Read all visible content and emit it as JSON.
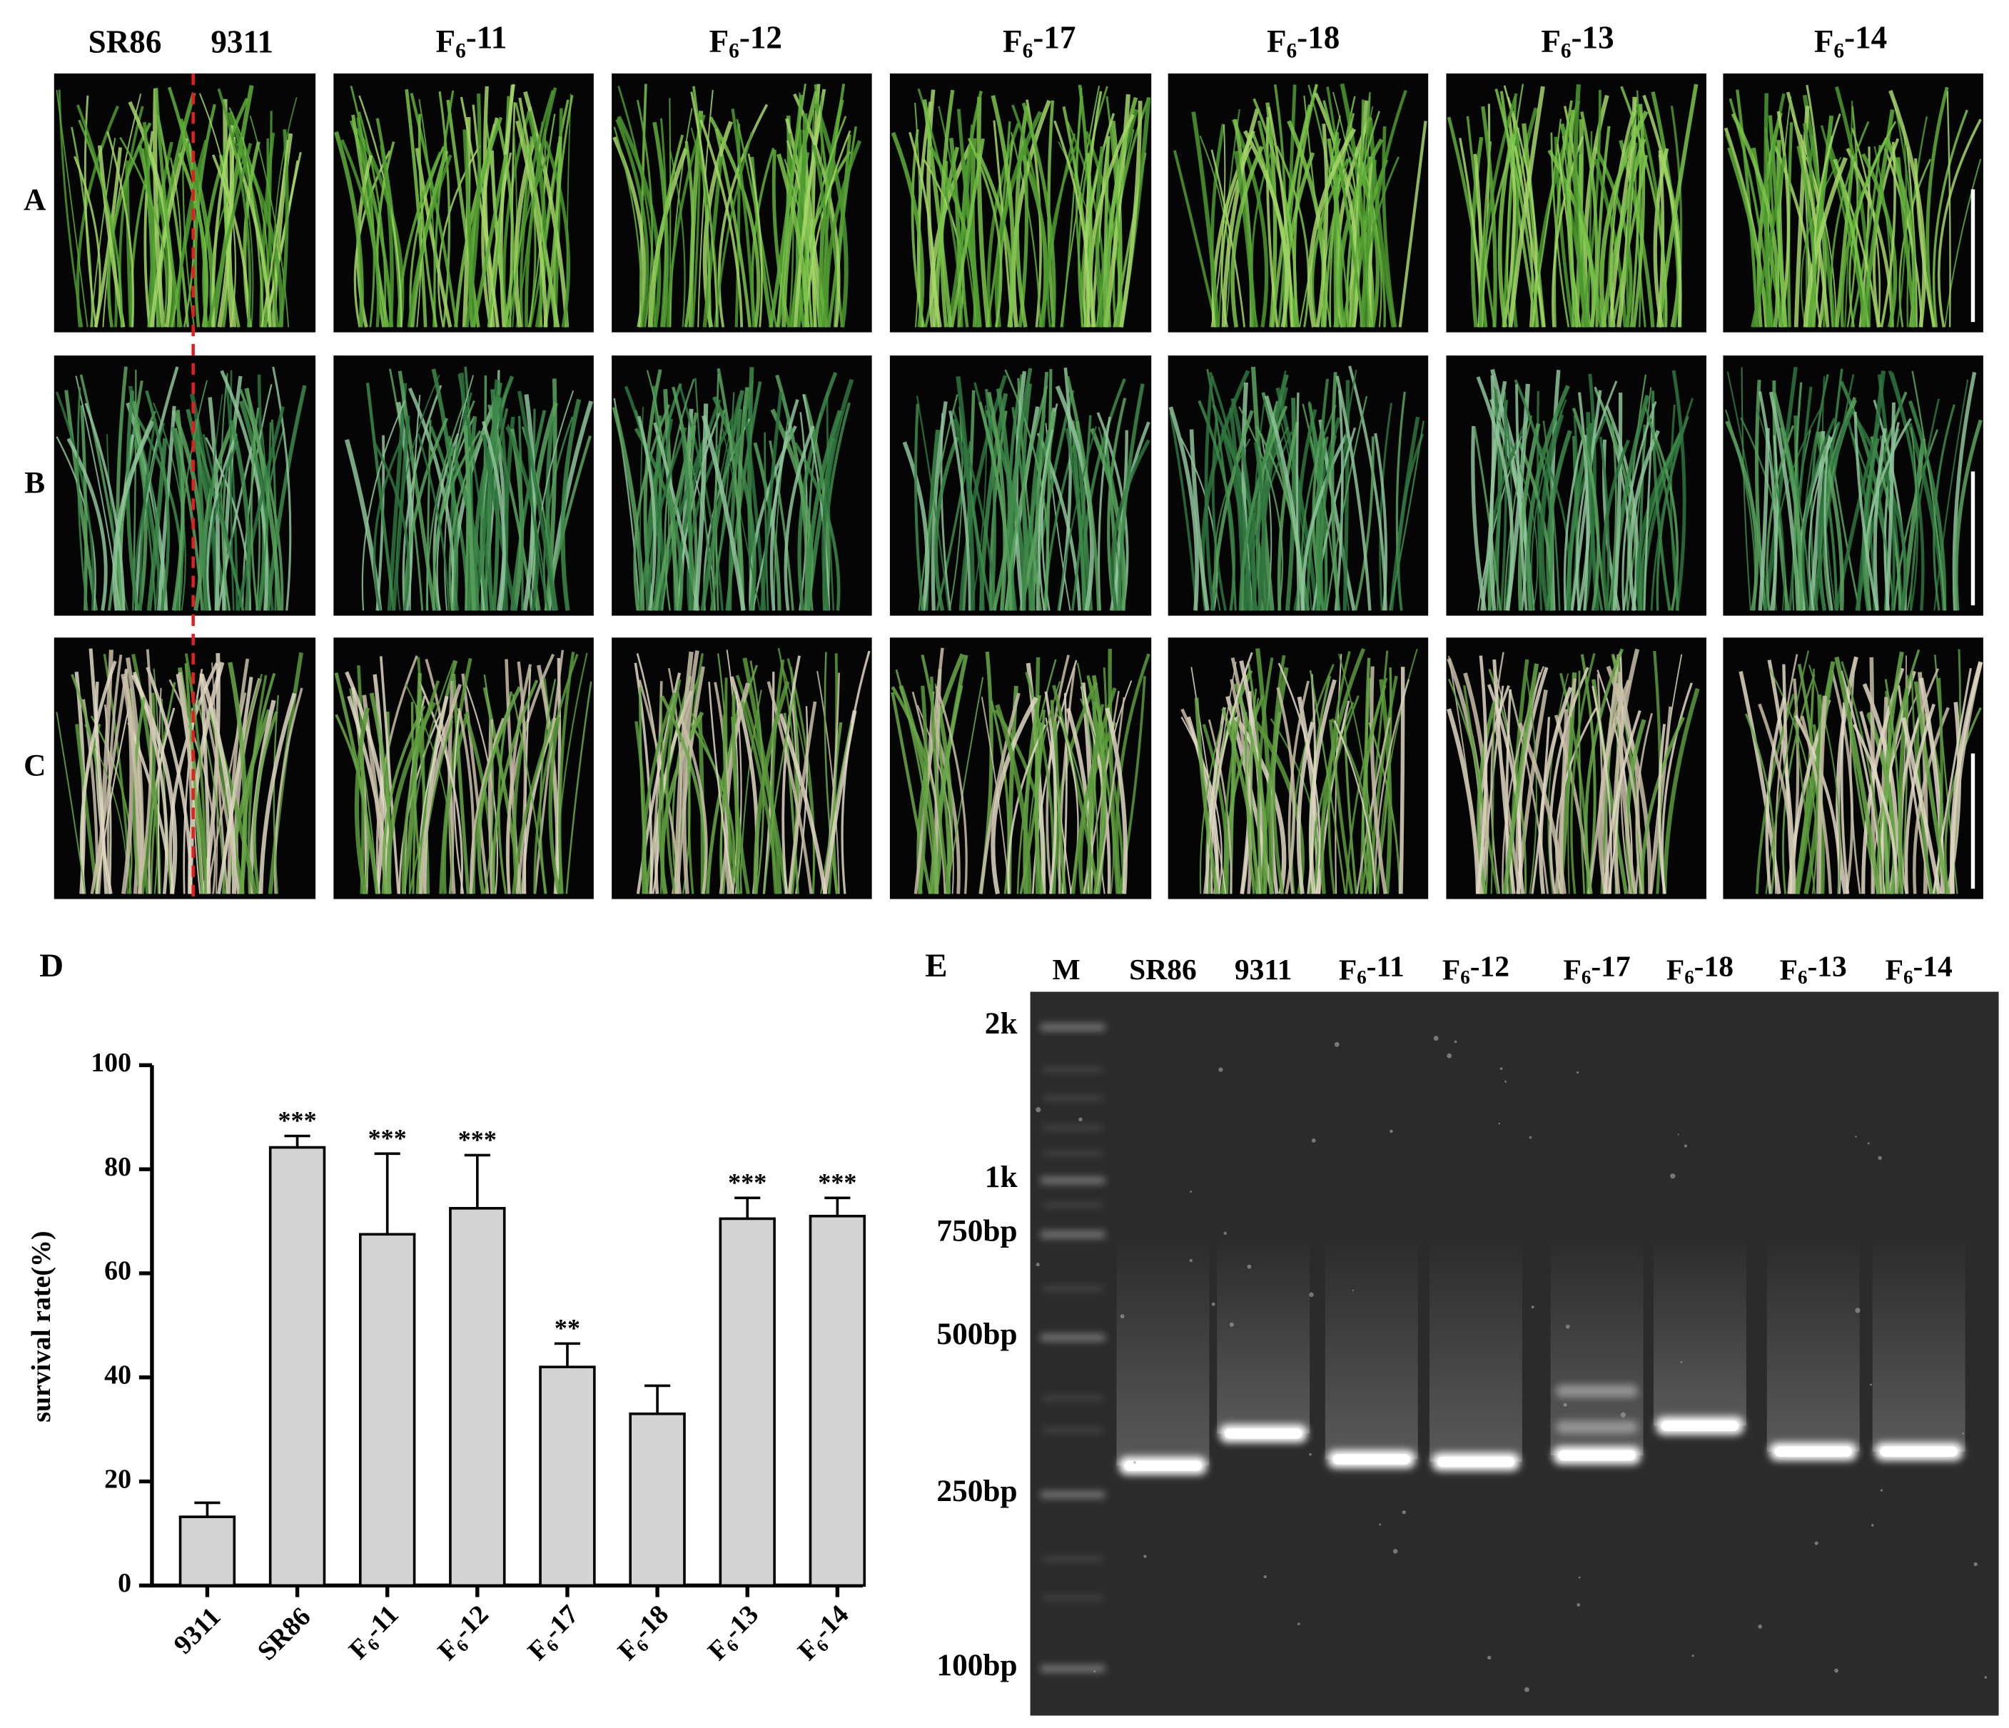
{
  "photos": {
    "columns": [
      "SR86",
      "9311",
      "F6-11",
      "F6-12",
      "F6-17",
      "F6-18",
      "F6-13",
      "F6-14"
    ],
    "rows": [
      "A",
      "B",
      "C"
    ]
  },
  "chart_data": {
    "type": "bar",
    "panel": "D",
    "ylabel": "survival rate(%)",
    "categories": [
      "9311",
      "SR86",
      "F6-11",
      "F6-12",
      "F6-17",
      "F6-18",
      "F6-13",
      "F6-14"
    ],
    "values": [
      13.2,
      84.2,
      67.5,
      72.5,
      42,
      33,
      70.5,
      71
    ],
    "errors": [
      2.7,
      2.2,
      15.5,
      10.2,
      4.5,
      5.4,
      4,
      3.5
    ],
    "significance": [
      null,
      "***",
      "***",
      "***",
      "**",
      null,
      "***",
      "***"
    ],
    "color": "#d3d3d3",
    "ylim": [
      0,
      100
    ],
    "yticks": [
      0,
      20,
      40,
      60,
      80,
      100
    ]
  },
  "gel": {
    "panel": "E",
    "lanes": [
      "M",
      "SR86",
      "9311",
      "F6-11",
      "F6-12",
      "F6-17",
      "F6-18",
      "F6-13",
      "F6-14"
    ],
    "markers": [
      "2k",
      "1k",
      "750bp",
      "500bp",
      "250bp",
      "100bp"
    ]
  }
}
